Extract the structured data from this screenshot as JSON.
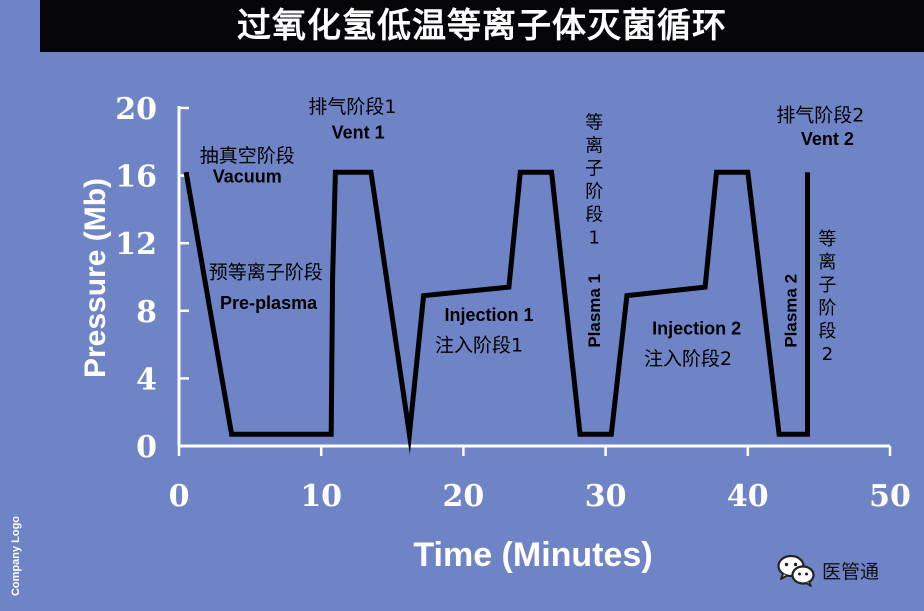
{
  "title": "过氧化氢低温等离子体灭菌循环",
  "company_logo": "Company Logo",
  "watermark": {
    "icon": "wechat-icon",
    "text": "医管通"
  },
  "colors": {
    "background": "#6f84c6",
    "title_bar": "#05050a",
    "line": "#000000",
    "axis": "#ffffff",
    "label": "#000000"
  },
  "chart_data": {
    "type": "line",
    "xlabel": "Time (Minutes)",
    "ylabel": "Pressure (Mb)",
    "xlim": [
      0,
      50
    ],
    "ylim": [
      0,
      20
    ],
    "x_ticks": [
      0,
      10,
      20,
      30,
      40,
      50
    ],
    "y_ticks": [
      0,
      4,
      8,
      12,
      16,
      20
    ],
    "grid": false,
    "legend": "none",
    "series": [
      {
        "x": [
          0.5,
          3.7,
          10.7,
          10.8,
          11,
          13.5,
          16.2,
          17.2,
          23.2,
          24,
          26.2,
          28.2,
          30.4,
          31.5,
          37,
          37.8,
          40,
          42.2,
          44.2,
          44.2
        ],
        "y": [
          16.2,
          0.7,
          0.7,
          10,
          16.2,
          16.2,
          0.7,
          8.9,
          9.4,
          16.2,
          16.2,
          0.7,
          0.7,
          8.9,
          9.4,
          16.2,
          16.2,
          0.7,
          0.7,
          16.2
        ]
      }
    ],
    "annotations": [
      {
        "text": "抽真空阶段",
        "x": 4.8,
        "y": 16.8,
        "bold": false
      },
      {
        "text": "Vacuum",
        "x": 4.8,
        "y": 15.6,
        "bold": true
      },
      {
        "text": "预等离子阶段",
        "x": 6.1,
        "y": 9.9,
        "bold": false
      },
      {
        "text": "Pre-plasma",
        "x": 6.3,
        "y": 8.1,
        "bold": true
      },
      {
        "text": "排气阶段1",
        "x": 12.2,
        "y": 19.7,
        "bold": false
      },
      {
        "text": "Vent 1",
        "x": 12.6,
        "y": 18.2,
        "bold": true
      },
      {
        "text": "Injection 1",
        "x": 21.8,
        "y": 7.4,
        "bold": true
      },
      {
        "text": "注入阶段1",
        "x": 21.1,
        "y": 5.6,
        "bold": false
      },
      {
        "text": "Injection 2",
        "x": 36.4,
        "y": 6.6,
        "bold": true
      },
      {
        "text": "注入阶段2",
        "x": 35.8,
        "y": 4.8,
        "bold": false
      },
      {
        "text": "排气阶段2",
        "x": 45.1,
        "y": 19.2,
        "bold": false
      },
      {
        "text": "Vent 2",
        "x": 45.6,
        "y": 17.8,
        "bold": true
      }
    ],
    "vertical_annotations": [
      {
        "text": "等离子阶段1",
        "x": 29.2,
        "y": 18.8
      },
      {
        "text": "等离子阶段2",
        "x": 45.6,
        "y": 11.9
      }
    ],
    "rotated_annotations": [
      {
        "text": "Plasma 1",
        "x": 29.2,
        "y": 8.0
      },
      {
        "text": "Plasma 2",
        "x": 43.0,
        "y": 8.0
      }
    ]
  }
}
